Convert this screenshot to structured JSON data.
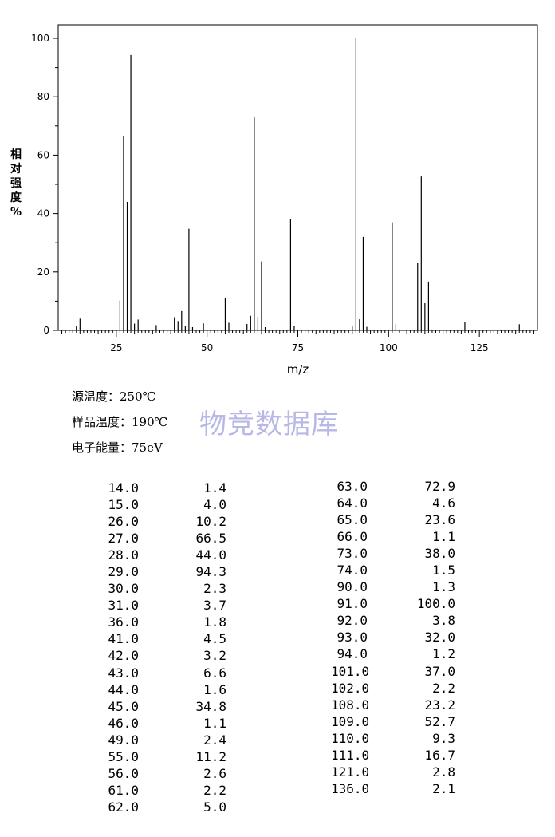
{
  "chart_data": {
    "type": "bar",
    "xlabel": "m/z",
    "ylabel": "相对强度%",
    "xlim": [
      9,
      141
    ],
    "ylim": [
      0,
      100
    ],
    "xticks": [
      25,
      50,
      75,
      100,
      125
    ],
    "yticks": [
      0,
      20,
      40,
      60,
      80,
      100
    ],
    "peaks": [
      {
        "x": 14.0,
        "y": 1.4
      },
      {
        "x": 15.0,
        "y": 4.0
      },
      {
        "x": 26.0,
        "y": 10.2
      },
      {
        "x": 27.0,
        "y": 66.5
      },
      {
        "x": 28.0,
        "y": 44.0
      },
      {
        "x": 29.0,
        "y": 94.3
      },
      {
        "x": 30.0,
        "y": 2.3
      },
      {
        "x": 31.0,
        "y": 3.7
      },
      {
        "x": 36.0,
        "y": 1.8
      },
      {
        "x": 41.0,
        "y": 4.5
      },
      {
        "x": 42.0,
        "y": 3.2
      },
      {
        "x": 43.0,
        "y": 6.6
      },
      {
        "x": 44.0,
        "y": 1.6
      },
      {
        "x": 45.0,
        "y": 34.8
      },
      {
        "x": 46.0,
        "y": 1.1
      },
      {
        "x": 49.0,
        "y": 2.4
      },
      {
        "x": 55.0,
        "y": 11.2
      },
      {
        "x": 56.0,
        "y": 2.6
      },
      {
        "x": 61.0,
        "y": 2.2
      },
      {
        "x": 62.0,
        "y": 5.0
      },
      {
        "x": 63.0,
        "y": 72.9
      },
      {
        "x": 64.0,
        "y": 4.6
      },
      {
        "x": 65.0,
        "y": 23.6
      },
      {
        "x": 66.0,
        "y": 1.1
      },
      {
        "x": 73.0,
        "y": 38.0
      },
      {
        "x": 74.0,
        "y": 1.5
      },
      {
        "x": 90.0,
        "y": 1.3
      },
      {
        "x": 91.0,
        "y": 100.0
      },
      {
        "x": 92.0,
        "y": 3.8
      },
      {
        "x": 93.0,
        "y": 32.0
      },
      {
        "x": 94.0,
        "y": 1.2
      },
      {
        "x": 101.0,
        "y": 37.0
      },
      {
        "x": 102.0,
        "y": 2.2
      },
      {
        "x": 108.0,
        "y": 23.2
      },
      {
        "x": 109.0,
        "y": 52.7
      },
      {
        "x": 110.0,
        "y": 9.3
      },
      {
        "x": 111.0,
        "y": 16.7
      },
      {
        "x": 121.0,
        "y": 2.8
      },
      {
        "x": 136.0,
        "y": 2.1
      }
    ]
  },
  "info": {
    "source_temp": "源温度：250℃",
    "sample_temp": "样品温度：190℃",
    "electron_energy": "电子能量：75eV"
  },
  "watermark": "物竞数据库",
  "table_left": [
    [
      "14.0",
      "1.4"
    ],
    [
      "15.0",
      "4.0"
    ],
    [
      "26.0",
      "10.2"
    ],
    [
      "27.0",
      "66.5"
    ],
    [
      "28.0",
      "44.0"
    ],
    [
      "29.0",
      "94.3"
    ],
    [
      "30.0",
      "2.3"
    ],
    [
      "31.0",
      "3.7"
    ],
    [
      "36.0",
      "1.8"
    ],
    [
      "41.0",
      "4.5"
    ],
    [
      "42.0",
      "3.2"
    ],
    [
      "43.0",
      "6.6"
    ],
    [
      "44.0",
      "1.6"
    ],
    [
      "45.0",
      "34.8"
    ],
    [
      "46.0",
      "1.1"
    ],
    [
      "49.0",
      "2.4"
    ],
    [
      "55.0",
      "11.2"
    ],
    [
      "56.0",
      "2.6"
    ],
    [
      "61.0",
      "2.2"
    ],
    [
      "62.0",
      "5.0"
    ]
  ],
  "table_right": [
    [
      "63.0",
      "72.9"
    ],
    [
      "64.0",
      "4.6"
    ],
    [
      "65.0",
      "23.6"
    ],
    [
      "66.0",
      "1.1"
    ],
    [
      "73.0",
      "38.0"
    ],
    [
      "74.0",
      "1.5"
    ],
    [
      "90.0",
      "1.3"
    ],
    [
      "91.0",
      "100.0"
    ],
    [
      "92.0",
      "3.8"
    ],
    [
      "93.0",
      "32.0"
    ],
    [
      "94.0",
      "1.2"
    ],
    [
      "101.0",
      "37.0"
    ],
    [
      "102.0",
      "2.2"
    ],
    [
      "108.0",
      "23.2"
    ],
    [
      "109.0",
      "52.7"
    ],
    [
      "110.0",
      "9.3"
    ],
    [
      "111.0",
      "16.7"
    ],
    [
      "121.0",
      "2.8"
    ],
    [
      "136.0",
      "2.1"
    ]
  ]
}
